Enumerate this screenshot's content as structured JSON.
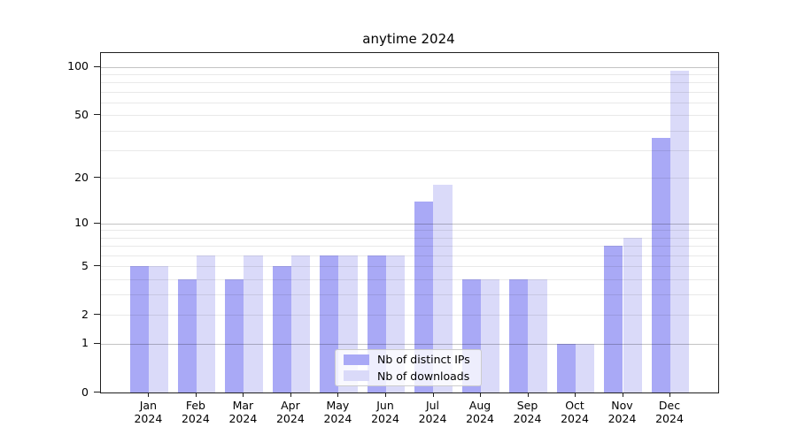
{
  "title": "anytime 2024",
  "chart_data": {
    "type": "bar",
    "title": "anytime 2024",
    "categories": [
      "Jan",
      "Feb",
      "Mar",
      "Apr",
      "May",
      "Jun",
      "Jul",
      "Aug",
      "Sep",
      "Oct",
      "Nov",
      "Dec"
    ],
    "year": "2024",
    "series": [
      {
        "name": "Nb of distinct IPs",
        "color": "#a9a9f6",
        "values": [
          5,
          4,
          4,
          5,
          6,
          6,
          14,
          4,
          4,
          1,
          7,
          36
        ]
      },
      {
        "name": "Nb of downloads",
        "color": "#dadaf9",
        "values": [
          5,
          6,
          6,
          6,
          6,
          6,
          18,
          4,
          4,
          1,
          8,
          95
        ]
      }
    ],
    "xlabel": "",
    "ylabel": "",
    "yscale": "log1p",
    "ylim": [
      0,
      122
    ],
    "yticks": [
      0,
      1,
      2,
      5,
      10,
      20,
      50,
      100
    ],
    "major_gridlines": [
      1,
      10,
      100
    ],
    "minor_gridlines": [
      2,
      3,
      4,
      5,
      6,
      7,
      8,
      9,
      20,
      30,
      40,
      50,
      60,
      70,
      80,
      90
    ],
    "grid": "on",
    "legend_position": "lower-center"
  },
  "colors": {
    "bar_distinct_ips": "#a9a9f6",
    "bar_downloads": "#dadaf9",
    "spine": "#1f1f1f",
    "major_grid": "#c2c2c2",
    "minor_grid": "#e8e8e8",
    "legend_border": "#cccccc",
    "background": "#ffffff"
  }
}
